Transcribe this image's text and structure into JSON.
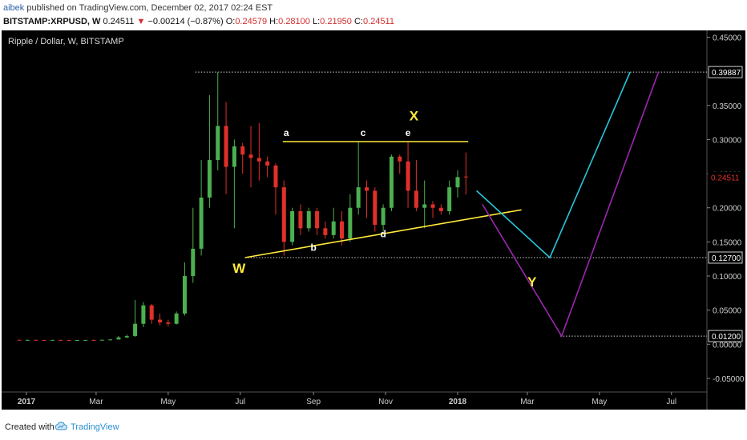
{
  "header": {
    "author": "aibek",
    "published_text": "published on TradingView.com, December 02, 2017 02:24 EST",
    "symbol": "BITSTAMP:XRPUSD, W",
    "last": "0.24511",
    "change": "−0.00214 (−0.87%)",
    "open_label": "O:",
    "open": "0.24579",
    "high_label": "H:",
    "high": "0.28100",
    "low_label": "L:",
    "low": "0.21950",
    "close_label": "C:",
    "close": "0.24511"
  },
  "footer": {
    "created_with": "Created with",
    "brand": "TradingView"
  },
  "colors": {
    "up": "#4caf50",
    "down": "#e0302a",
    "yellow": "#ffeb3b",
    "cyan": "#26c6da",
    "purple": "#9c27b0",
    "background": "#000000"
  },
  "chart_data": {
    "type": "candlestick",
    "title": "Ripple / Dollar, W, BITSTAMP",
    "ylim": [
      -0.07,
      0.46
    ],
    "y_ticks": [
      "0.45000",
      "0.35000",
      "0.30000",
      "0.25000",
      "0.20000",
      "0.15000",
      "0.10000",
      "0.05000",
      "0.00000",
      "-0.05000"
    ],
    "y_highlighted": [
      {
        "label": "0.39887",
        "value": 0.39887,
        "style": "box"
      },
      {
        "label": "0.24511",
        "value": 0.24511,
        "style": "last"
      },
      {
        "label": "0.12700",
        "value": 0.127,
        "style": "box"
      },
      {
        "label": "0.01200",
        "value": 0.012,
        "style": "box"
      }
    ],
    "x_range": [
      "2016-12-11",
      "2018-07-31"
    ],
    "x_ticks": [
      {
        "label": "2017",
        "date": "2017-01-01",
        "bold": true
      },
      {
        "label": "Mar",
        "date": "2017-03-01"
      },
      {
        "label": "May",
        "date": "2017-05-01"
      },
      {
        "label": "Jul",
        "date": "2017-07-01"
      },
      {
        "label": "Sep",
        "date": "2017-09-01"
      },
      {
        "label": "Nov",
        "date": "2017-11-01"
      },
      {
        "label": "2018",
        "date": "2018-01-01",
        "bold": true
      },
      {
        "label": "Mar",
        "date": "2018-03-01"
      },
      {
        "label": "May",
        "date": "2018-05-01"
      },
      {
        "label": "Jul",
        "date": "2018-07-01"
      }
    ],
    "candles": [
      {
        "date": "2016-12-26",
        "o": 0.0065,
        "h": 0.0067,
        "l": 0.006,
        "c": 0.0063
      },
      {
        "date": "2017-01-02",
        "o": 0.0063,
        "h": 0.0068,
        "l": 0.0058,
        "c": 0.0064
      },
      {
        "date": "2017-01-09",
        "o": 0.0064,
        "h": 0.0067,
        "l": 0.0059,
        "c": 0.0062
      },
      {
        "date": "2017-01-16",
        "o": 0.0062,
        "h": 0.0066,
        "l": 0.0058,
        "c": 0.0061
      },
      {
        "date": "2017-01-23",
        "o": 0.0061,
        "h": 0.0065,
        "l": 0.0058,
        "c": 0.0063
      },
      {
        "date": "2017-01-30",
        "o": 0.0063,
        "h": 0.0066,
        "l": 0.006,
        "c": 0.0062
      },
      {
        "date": "2017-02-06",
        "o": 0.0062,
        "h": 0.0065,
        "l": 0.0059,
        "c": 0.0061
      },
      {
        "date": "2017-02-13",
        "o": 0.0061,
        "h": 0.0064,
        "l": 0.0058,
        "c": 0.0062
      },
      {
        "date": "2017-02-20",
        "o": 0.0062,
        "h": 0.0066,
        "l": 0.006,
        "c": 0.0063
      },
      {
        "date": "2017-02-27",
        "o": 0.0063,
        "h": 0.007,
        "l": 0.006,
        "c": 0.0062
      },
      {
        "date": "2017-03-06",
        "o": 0.0062,
        "h": 0.0068,
        "l": 0.0059,
        "c": 0.0065
      },
      {
        "date": "2017-03-13",
        "o": 0.0065,
        "h": 0.0075,
        "l": 0.0062,
        "c": 0.007
      },
      {
        "date": "2017-03-20",
        "o": 0.007,
        "h": 0.012,
        "l": 0.0068,
        "c": 0.01
      },
      {
        "date": "2017-03-27",
        "o": 0.01,
        "h": 0.014,
        "l": 0.009,
        "c": 0.012
      },
      {
        "date": "2017-04-03",
        "o": 0.012,
        "h": 0.065,
        "l": 0.011,
        "c": 0.03
      },
      {
        "date": "2017-04-10",
        "o": 0.03,
        "h": 0.062,
        "l": 0.025,
        "c": 0.057
      },
      {
        "date": "2017-04-17",
        "o": 0.057,
        "h": 0.059,
        "l": 0.03,
        "c": 0.036
      },
      {
        "date": "2017-04-24",
        "o": 0.036,
        "h": 0.045,
        "l": 0.028,
        "c": 0.032
      },
      {
        "date": "2017-05-01",
        "o": 0.032,
        "h": 0.036,
        "l": 0.026,
        "c": 0.03
      },
      {
        "date": "2017-05-08",
        "o": 0.03,
        "h": 0.048,
        "l": 0.029,
        "c": 0.045
      },
      {
        "date": "2017-05-15",
        "o": 0.045,
        "h": 0.12,
        "l": 0.042,
        "c": 0.1
      },
      {
        "date": "2017-05-22",
        "o": 0.1,
        "h": 0.2,
        "l": 0.09,
        "c": 0.14
      },
      {
        "date": "2017-05-29",
        "o": 0.14,
        "h": 0.27,
        "l": 0.13,
        "c": 0.215
      },
      {
        "date": "2017-06-05",
        "o": 0.215,
        "h": 0.365,
        "l": 0.2,
        "c": 0.27
      },
      {
        "date": "2017-06-12",
        "o": 0.27,
        "h": 0.399,
        "l": 0.255,
        "c": 0.32
      },
      {
        "date": "2017-06-19",
        "o": 0.32,
        "h": 0.355,
        "l": 0.22,
        "c": 0.26
      },
      {
        "date": "2017-06-26",
        "o": 0.26,
        "h": 0.3,
        "l": 0.17,
        "c": 0.29
      },
      {
        "date": "2017-07-03",
        "o": 0.29,
        "h": 0.295,
        "l": 0.25,
        "c": 0.278
      },
      {
        "date": "2017-07-10",
        "o": 0.278,
        "h": 0.32,
        "l": 0.23,
        "c": 0.273
      },
      {
        "date": "2017-07-17",
        "o": 0.273,
        "h": 0.324,
        "l": 0.24,
        "c": 0.268
      },
      {
        "date": "2017-07-24",
        "o": 0.268,
        "h": 0.275,
        "l": 0.245,
        "c": 0.262
      },
      {
        "date": "2017-07-31",
        "o": 0.262,
        "h": 0.265,
        "l": 0.19,
        "c": 0.23
      },
      {
        "date": "2017-08-07",
        "o": 0.23,
        "h": 0.24,
        "l": 0.13,
        "c": 0.15
      },
      {
        "date": "2017-08-14",
        "o": 0.15,
        "h": 0.2,
        "l": 0.145,
        "c": 0.195
      },
      {
        "date": "2017-08-21",
        "o": 0.195,
        "h": 0.205,
        "l": 0.16,
        "c": 0.17
      },
      {
        "date": "2017-08-28",
        "o": 0.17,
        "h": 0.2,
        "l": 0.165,
        "c": 0.195
      },
      {
        "date": "2017-09-04",
        "o": 0.195,
        "h": 0.2,
        "l": 0.16,
        "c": 0.17
      },
      {
        "date": "2017-09-11",
        "o": 0.17,
        "h": 0.18,
        "l": 0.155,
        "c": 0.16
      },
      {
        "date": "2017-09-18",
        "o": 0.16,
        "h": 0.2,
        "l": 0.155,
        "c": 0.18
      },
      {
        "date": "2017-09-25",
        "o": 0.18,
        "h": 0.195,
        "l": 0.145,
        "c": 0.155
      },
      {
        "date": "2017-10-02",
        "o": 0.155,
        "h": 0.22,
        "l": 0.15,
        "c": 0.2
      },
      {
        "date": "2017-10-09",
        "o": 0.2,
        "h": 0.297,
        "l": 0.19,
        "c": 0.23
      },
      {
        "date": "2017-10-16",
        "o": 0.23,
        "h": 0.24,
        "l": 0.185,
        "c": 0.225
      },
      {
        "date": "2017-10-23",
        "o": 0.225,
        "h": 0.23,
        "l": 0.165,
        "c": 0.175
      },
      {
        "date": "2017-10-30",
        "o": 0.175,
        "h": 0.205,
        "l": 0.165,
        "c": 0.2
      },
      {
        "date": "2017-11-06",
        "o": 0.2,
        "h": 0.278,
        "l": 0.195,
        "c": 0.275
      },
      {
        "date": "2017-11-13",
        "o": 0.275,
        "h": 0.278,
        "l": 0.25,
        "c": 0.268
      },
      {
        "date": "2017-11-20",
        "o": 0.268,
        "h": 0.297,
        "l": 0.2,
        "c": 0.225
      },
      {
        "date": "2017-11-27",
        "o": 0.225,
        "h": 0.27,
        "l": 0.195,
        "c": 0.2
      },
      {
        "date": "2017-12-04",
        "o": 0.2,
        "h": 0.24,
        "l": 0.17,
        "c": 0.205
      },
      {
        "date": "2017-12-11",
        "o": 0.205,
        "h": 0.21,
        "l": 0.185,
        "c": 0.2
      },
      {
        "date": "2017-12-18",
        "o": 0.2,
        "h": 0.205,
        "l": 0.19,
        "c": 0.195
      },
      {
        "date": "2017-12-25",
        "o": 0.195,
        "h": 0.24,
        "l": 0.19,
        "c": 0.23
      },
      {
        "date": "2018-01-01",
        "o": 0.23,
        "h": 0.255,
        "l": 0.215,
        "c": 0.245
      },
      {
        "date": "2018-01-08",
        "o": 0.2458,
        "h": 0.281,
        "l": 0.2195,
        "c": 0.2451
      }
    ],
    "drawings": [
      {
        "name": "resistance-line",
        "color": "#ffeb3b",
        "points": [
          [
            "2017-08-06",
            0.297
          ],
          [
            "2018-01-10",
            0.297
          ]
        ]
      },
      {
        "name": "support-line",
        "color": "#ffeb3b",
        "points": [
          [
            "2017-07-05",
            0.127
          ],
          [
            "2018-02-24",
            0.197
          ]
        ]
      },
      {
        "name": "cyan-path",
        "color": "#26c6da",
        "points": [
          [
            "2018-01-17",
            0.225
          ],
          [
            "2018-03-20",
            0.127
          ],
          [
            "2018-05-27",
            0.399
          ]
        ]
      },
      {
        "name": "purple-path",
        "color": "#9c27b0",
        "points": [
          [
            "2018-01-22",
            0.205
          ],
          [
            "2018-03-30",
            0.012
          ],
          [
            "2018-06-20",
            0.399
          ]
        ]
      },
      {
        "name": "level-0.39887",
        "color": "#d0d0d0",
        "dashed": true,
        "points": [
          [
            "2017-05-24",
            0.39887
          ],
          [
            "2018-07-31",
            0.39887
          ]
        ]
      },
      {
        "name": "level-0.12700",
        "color": "#d0d0d0",
        "dashed": true,
        "points": [
          [
            "2017-07-05",
            0.127
          ],
          [
            "2018-07-31",
            0.127
          ]
        ]
      },
      {
        "name": "level-0.01200",
        "color": "#d0d0d0",
        "dashed": true,
        "points": [
          [
            "2018-03-29",
            0.012
          ],
          [
            "2018-07-31",
            0.012
          ]
        ]
      }
    ],
    "annotations": [
      {
        "text": "a",
        "date": "2017-08-09",
        "y": 0.305,
        "color": "#ffffff",
        "size": 12
      },
      {
        "text": "c",
        "date": "2017-10-13",
        "y": 0.305,
        "color": "#ffffff",
        "size": 12
      },
      {
        "text": "e",
        "date": "2017-11-20",
        "y": 0.305,
        "color": "#ffffff",
        "size": 12
      },
      {
        "text": "X",
        "date": "2017-11-25",
        "y": 0.328,
        "color": "#ffeb3b",
        "size": 17
      },
      {
        "text": "b",
        "date": "2017-09-01",
        "y": 0.137,
        "color": "#ffffff",
        "size": 12
      },
      {
        "text": "d",
        "date": "2017-10-30",
        "y": 0.157,
        "color": "#ffffff",
        "size": 12
      },
      {
        "text": "W",
        "date": "2017-06-30",
        "y": 0.105,
        "color": "#ffeb3b",
        "size": 17
      },
      {
        "text": "Y",
        "date": "2018-03-05",
        "y": 0.085,
        "color": "#ffeb3b",
        "size": 17
      }
    ]
  }
}
